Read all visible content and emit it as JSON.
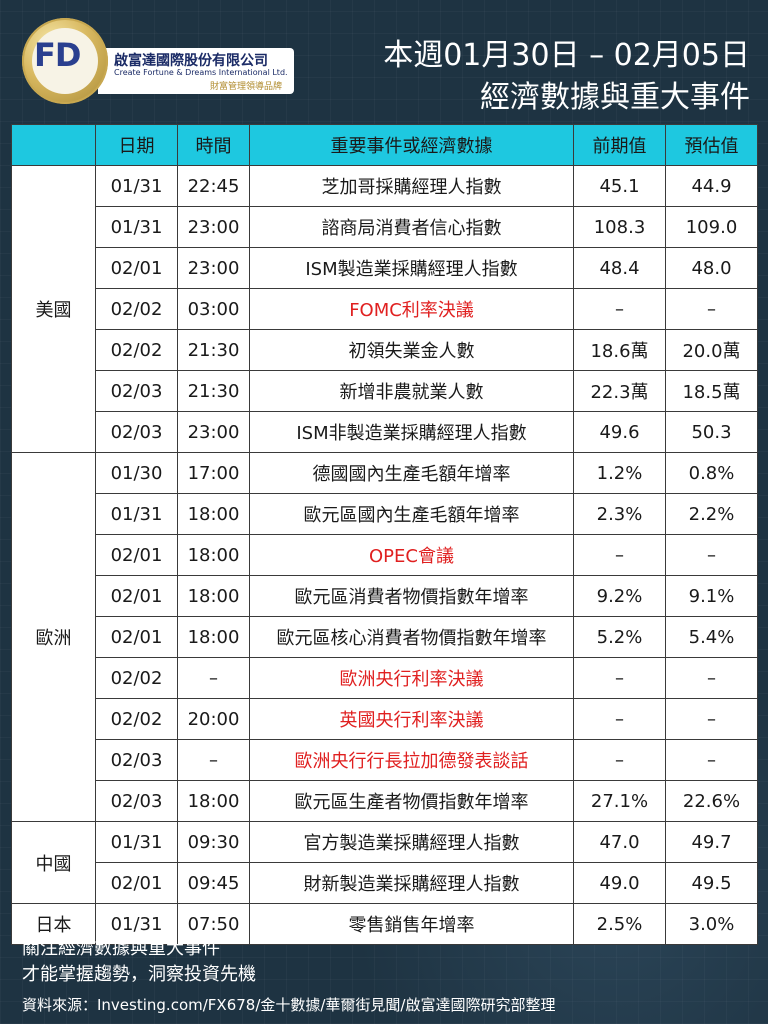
{
  "logo": {
    "mark": "FD",
    "company_cn": "啟富達國際股份有限公司",
    "company_en": "Create Fortune & Dreams International Ltd.",
    "tagline": "財富管理領導品牌"
  },
  "title": {
    "line1": "本週01月30日 – 02月05日",
    "line2": "經濟數據與重大事件"
  },
  "table": {
    "headers": {
      "region": "",
      "date": "日期",
      "time": "時間",
      "event": "重要事件或經濟數據",
      "previous": "前期值",
      "forecast": "預估值"
    },
    "groups": [
      {
        "region": "美國",
        "rows": [
          {
            "date": "01/31",
            "time": "22:45",
            "event": "芝加哥採購經理人指數",
            "previous": "45.1",
            "forecast": "44.9",
            "highlight": false
          },
          {
            "date": "01/31",
            "time": "23:00",
            "event": "諮商局消費者信心指數",
            "previous": "108.3",
            "forecast": "109.0",
            "highlight": false
          },
          {
            "date": "02/01",
            "time": "23:00",
            "event": "ISM製造業採購經理人指數",
            "previous": "48.4",
            "forecast": "48.0",
            "highlight": false
          },
          {
            "date": "02/02",
            "time": "03:00",
            "event": "FOMC利率決議",
            "previous": "–",
            "forecast": "–",
            "highlight": true
          },
          {
            "date": "02/02",
            "time": "21:30",
            "event": "初領失業金人數",
            "previous": "18.6萬",
            "forecast": "20.0萬",
            "highlight": false
          },
          {
            "date": "02/03",
            "time": "21:30",
            "event": "新增非農就業人數",
            "previous": "22.3萬",
            "forecast": "18.5萬",
            "highlight": false
          },
          {
            "date": "02/03",
            "time": "23:00",
            "event": "ISM非製造業採購經理人指數",
            "previous": "49.6",
            "forecast": "50.3",
            "highlight": false
          }
        ]
      },
      {
        "region": "歐洲",
        "rows": [
          {
            "date": "01/30",
            "time": "17:00",
            "event": "德國國內生產毛額年增率",
            "previous": "1.2%",
            "forecast": "0.8%",
            "highlight": false
          },
          {
            "date": "01/31",
            "time": "18:00",
            "event": "歐元區國內生產毛額年增率",
            "previous": "2.3%",
            "forecast": "2.2%",
            "highlight": false
          },
          {
            "date": "02/01",
            "time": "18:00",
            "event": "OPEC會議",
            "previous": "–",
            "forecast": "–",
            "highlight": true
          },
          {
            "date": "02/01",
            "time": "18:00",
            "event": "歐元區消費者物價指數年增率",
            "previous": "9.2%",
            "forecast": "9.1%",
            "highlight": false
          },
          {
            "date": "02/01",
            "time": "18:00",
            "event": "歐元區核心消費者物價指數年增率",
            "previous": "5.2%",
            "forecast": "5.4%",
            "highlight": false
          },
          {
            "date": "02/02",
            "time": "–",
            "event": "歐洲央行利率決議",
            "previous": "–",
            "forecast": "–",
            "highlight": true
          },
          {
            "date": "02/02",
            "time": "20:00",
            "event": "英國央行利率決議",
            "previous": "–",
            "forecast": "–",
            "highlight": true
          },
          {
            "date": "02/03",
            "time": "–",
            "event": "歐洲央行行長拉加德發表談話",
            "previous": "–",
            "forecast": "–",
            "highlight": true
          },
          {
            "date": "02/03",
            "time": "18:00",
            "event": "歐元區生產者物價指數年增率",
            "previous": "27.1%",
            "forecast": "22.6%",
            "highlight": false
          }
        ]
      },
      {
        "region": "中國",
        "rows": [
          {
            "date": "01/31",
            "time": "09:30",
            "event": "官方製造業採購經理人指數",
            "previous": "47.0",
            "forecast": "49.7",
            "highlight": false
          },
          {
            "date": "02/01",
            "time": "09:45",
            "event": "財新製造業採購經理人指數",
            "previous": "49.0",
            "forecast": "49.5",
            "highlight": false
          }
        ]
      },
      {
        "region": "日本",
        "rows": [
          {
            "date": "01/31",
            "time": "07:50",
            "event": "零售銷售年增率",
            "previous": "2.5%",
            "forecast": "3.0%",
            "highlight": false
          }
        ]
      }
    ]
  },
  "footer": {
    "line1": "關注經濟數據與重大事件",
    "line2": "才能掌握趨勢，洞察投資先機",
    "source": "資料來源：Investing.com/FX678/金十數據/華爾街見聞/啟富達國際研究部整理"
  },
  "colors": {
    "background": "#1e3342",
    "header_row": "#1ec8e0",
    "highlight_text": "#e02020"
  }
}
